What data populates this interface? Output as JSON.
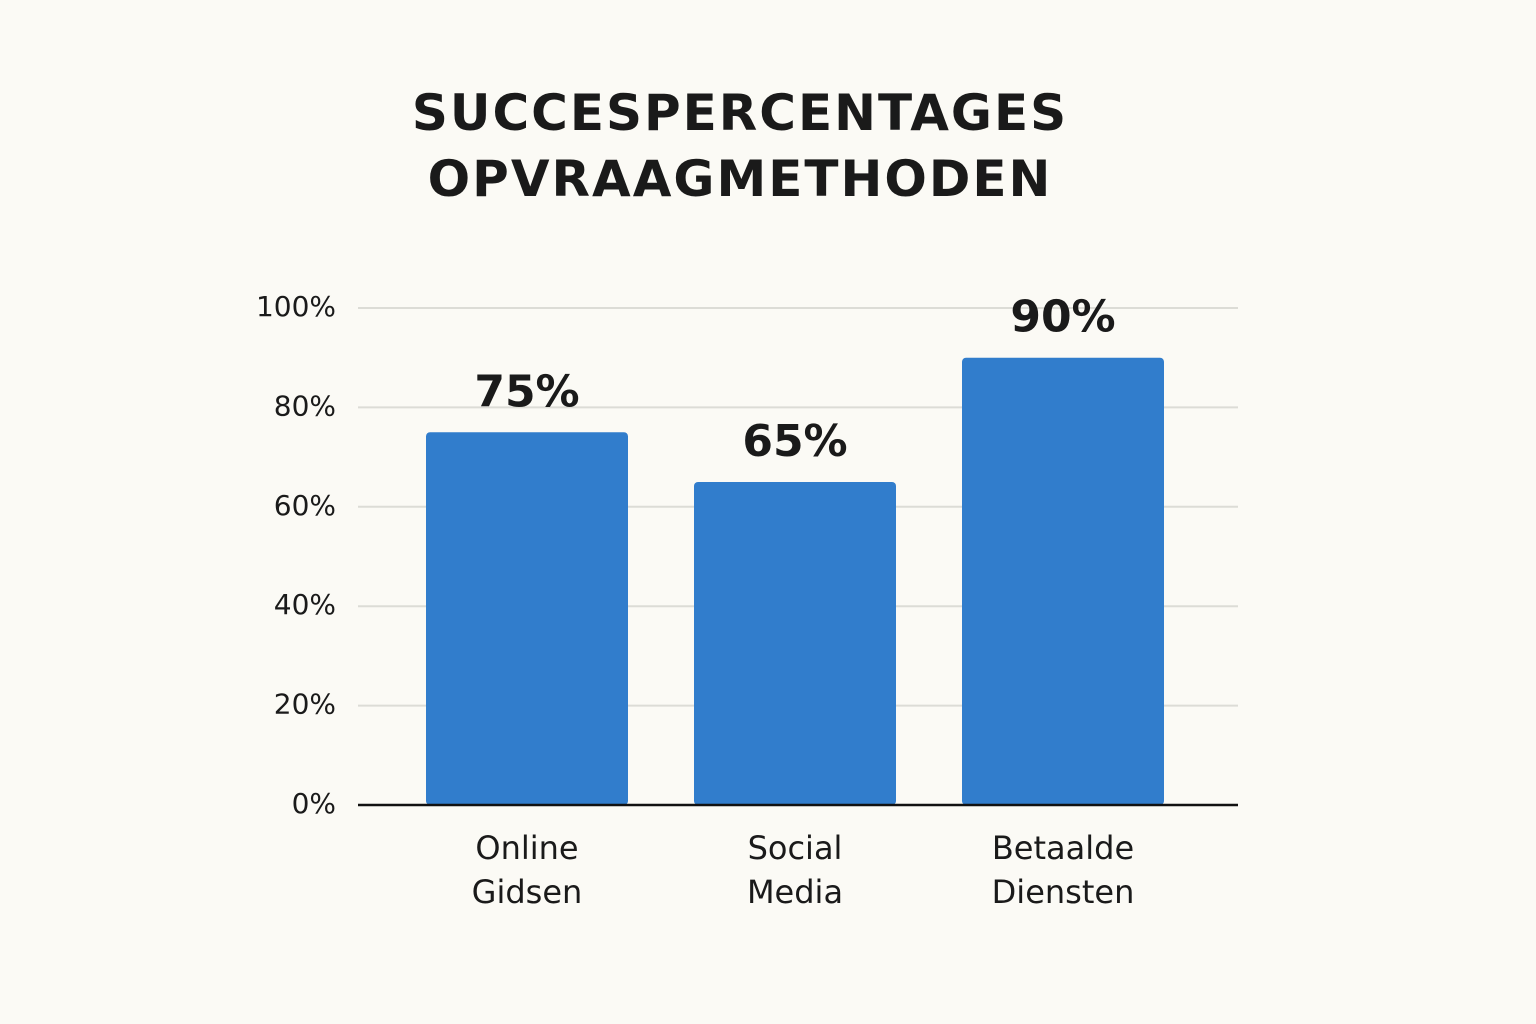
{
  "chart_data": {
    "type": "bar",
    "title": "SUCCESPERCENTAGES OPVRAAGMETHODEN",
    "categories": [
      "Online Gidsen",
      "Social Media",
      "Betaalde Diensten"
    ],
    "values": [
      75,
      65,
      90
    ],
    "value_labels": [
      "75%",
      "65%",
      "90%"
    ],
    "color": "#317dcc",
    "ylim": [
      0,
      100
    ],
    "yticks": [
      {
        "value": 0,
        "label": "0%"
      },
      {
        "value": 20,
        "label": "20%"
      },
      {
        "value": 40,
        "label": "40%"
      },
      {
        "value": 60,
        "label": "60%"
      },
      {
        "value": 80,
        "label": "80%"
      },
      {
        "value": 100,
        "label": "100%"
      }
    ],
    "grid": true
  }
}
